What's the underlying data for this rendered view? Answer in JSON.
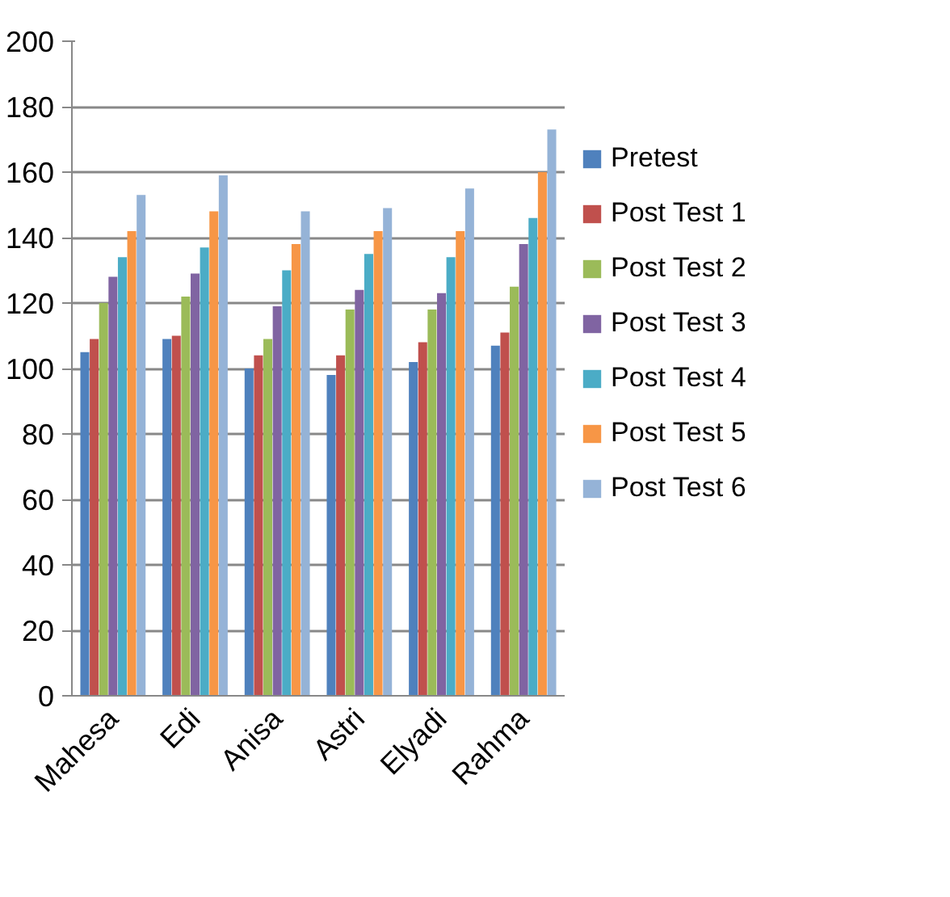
{
  "chart_data": {
    "type": "bar",
    "categories": [
      "Mahesa",
      "Edi",
      "Anisa",
      "Astri",
      "Elyadi",
      "Rahma"
    ],
    "series": [
      {
        "name": "Pretest",
        "color": "#4f81bd",
        "values": [
          105,
          109,
          100,
          98,
          102,
          107
        ]
      },
      {
        "name": "Post Test 1",
        "color": "#c0504d",
        "values": [
          109,
          110,
          104,
          104,
          108,
          111
        ]
      },
      {
        "name": "Post Test 2",
        "color": "#9bbb59",
        "values": [
          120,
          122,
          109,
          118,
          118,
          125
        ]
      },
      {
        "name": "Post Test 3",
        "color": "#8064a2",
        "values": [
          128,
          129,
          119,
          124,
          123,
          138
        ]
      },
      {
        "name": "Post Test 4",
        "color": "#4bacc6",
        "values": [
          134,
          137,
          130,
          135,
          134,
          146
        ]
      },
      {
        "name": "Post Test 5",
        "color": "#f79646",
        "values": [
          142,
          148,
          138,
          142,
          142,
          160
        ]
      },
      {
        "name": "Post Test 6",
        "color": "#95b3d7",
        "values": [
          153,
          159,
          148,
          149,
          155,
          173
        ]
      }
    ],
    "ylim": [
      0,
      200
    ],
    "yticks": [
      0,
      20,
      40,
      60,
      80,
      100,
      120,
      140,
      160,
      180,
      200
    ],
    "grid": "y",
    "legend": "right"
  }
}
